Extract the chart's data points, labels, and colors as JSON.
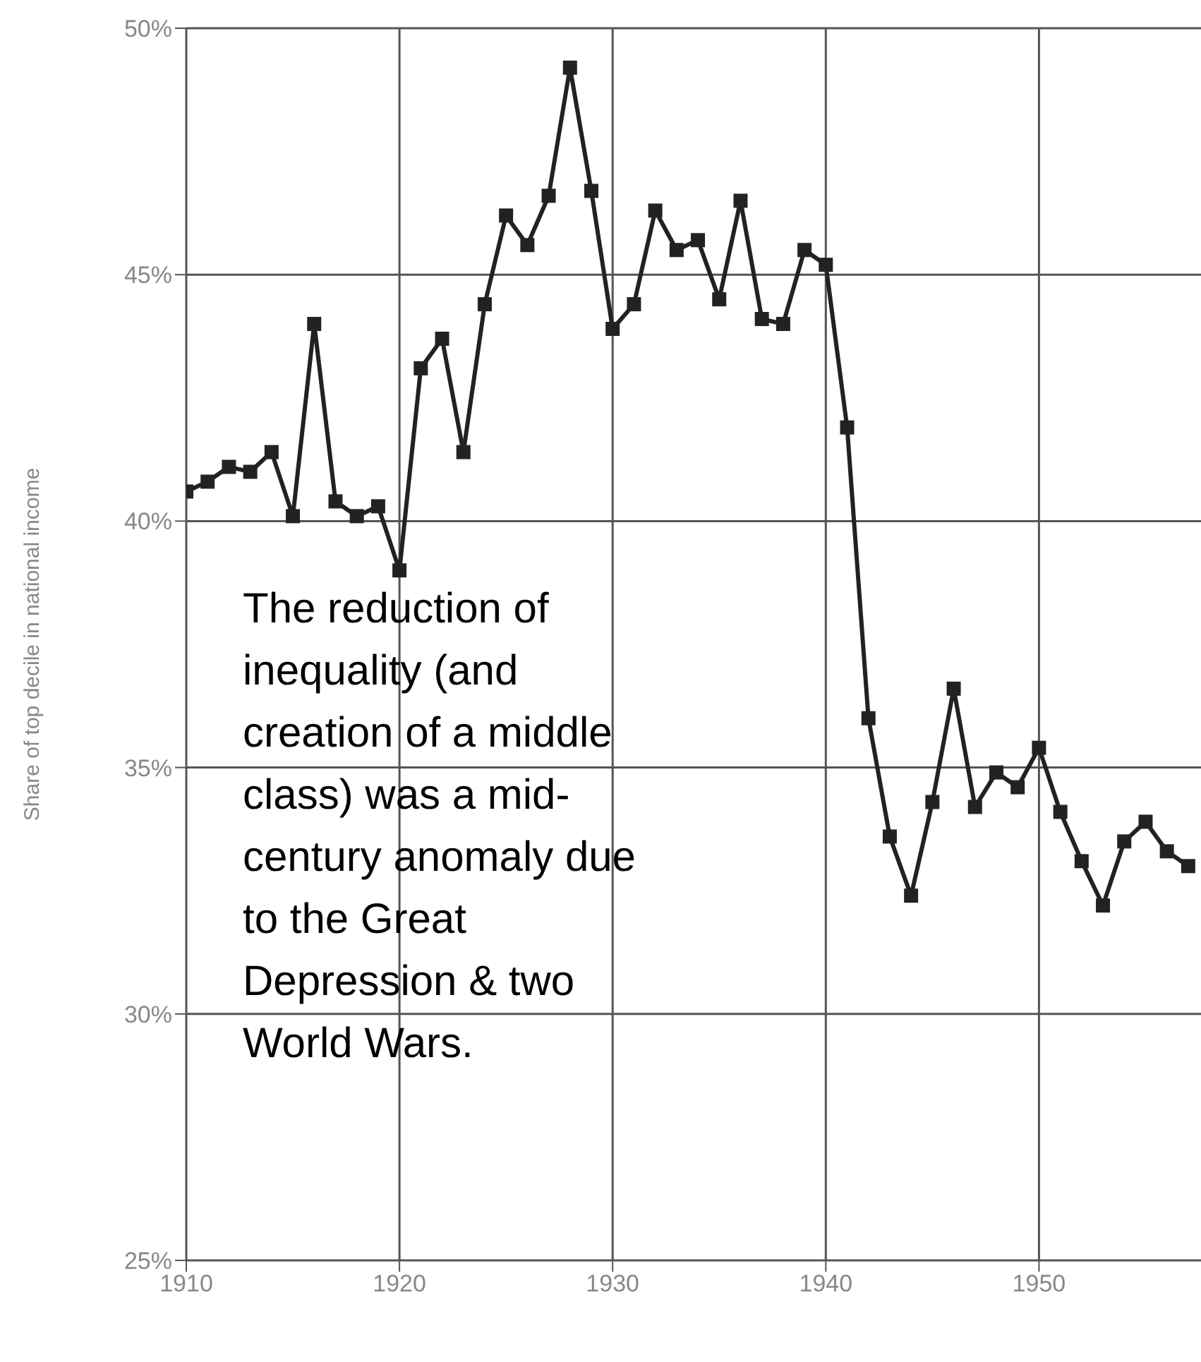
{
  "chart_data": {
    "type": "line",
    "ylabel": "Share of top decile in national income",
    "annotations": [
      "The reduction of inequality (and creation of a middle class) was a mid-century anomaly due to the Great Depression & two World Wars."
    ],
    "x": [
      1910,
      1911,
      1912,
      1913,
      1914,
      1915,
      1916,
      1917,
      1918,
      1919,
      1920,
      1921,
      1922,
      1923,
      1924,
      1925,
      1926,
      1927,
      1928,
      1929,
      1930,
      1931,
      1932,
      1933,
      1934,
      1935,
      1936,
      1937,
      1938,
      1939,
      1940,
      1941,
      1942,
      1943,
      1944,
      1945,
      1946,
      1947,
      1948,
      1949,
      1950,
      1951,
      1952,
      1953,
      1954,
      1955,
      1956,
      1957
    ],
    "series": [
      {
        "color": "#222222",
        "values": [
          40.6,
          40.8,
          41.1,
          41.0,
          41.4,
          40.1,
          44.0,
          40.4,
          40.1,
          40.3,
          39.0,
          43.1,
          43.7,
          41.4,
          44.4,
          46.2,
          45.6,
          46.6,
          49.2,
          46.7,
          43.9,
          44.4,
          46.3,
          45.5,
          45.7,
          44.5,
          46.5,
          44.1,
          44.0,
          45.5,
          45.2,
          41.9,
          36.0,
          33.6,
          32.4,
          34.3,
          36.6,
          34.2,
          34.9,
          34.6,
          35.4,
          34.1,
          33.1,
          32.2,
          33.5,
          33.9,
          33.3,
          33.0
        ]
      }
    ],
    "xlim": [
      1910,
      1957.6
    ],
    "xticks": [
      1910,
      1920,
      1930,
      1940,
      1950
    ],
    "ylim": [
      25,
      50
    ],
    "yticks": [
      {
        "value": 25,
        "label": "25%"
      },
      {
        "value": 30,
        "label": "30%"
      },
      {
        "value": 35,
        "label": "35%"
      },
      {
        "value": 40,
        "label": "40%"
      },
      {
        "value": 45,
        "label": "45%"
      },
      {
        "value": 50,
        "label": "50%"
      }
    ],
    "grid": true,
    "marker": "square",
    "line_style": "solid"
  }
}
